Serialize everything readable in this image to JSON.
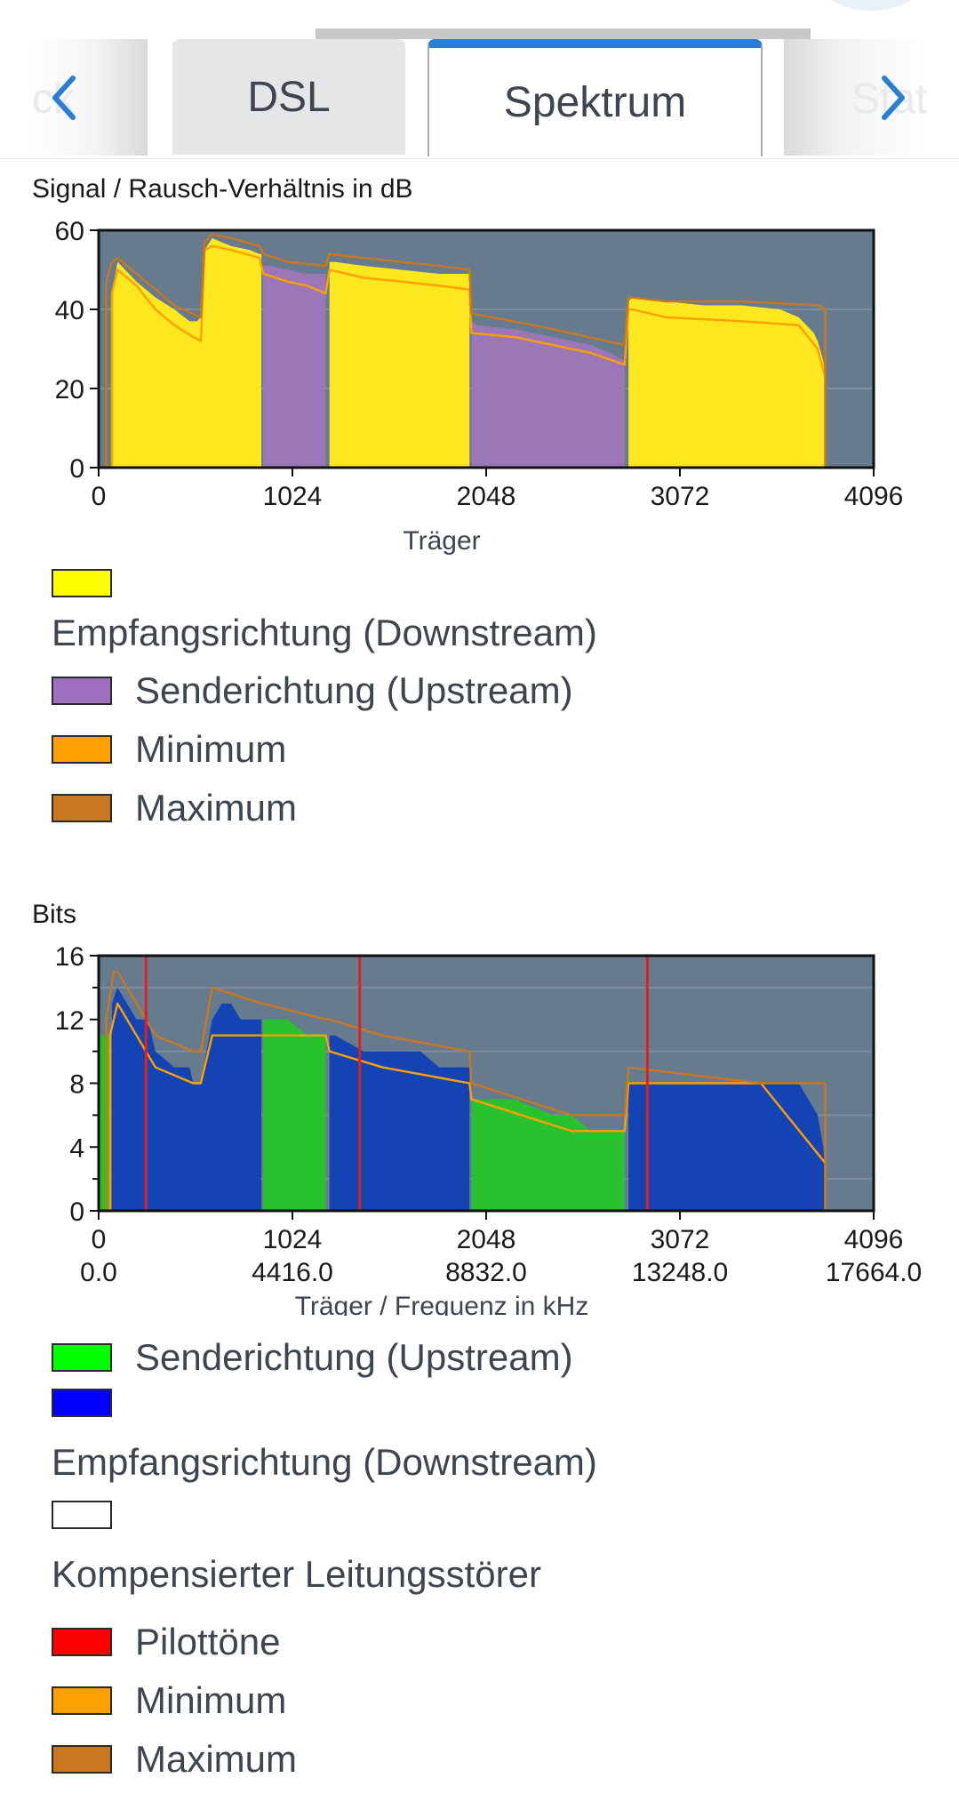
{
  "tabs": {
    "prev_partial": "ck",
    "items": [
      {
        "label": "DSL",
        "active": false
      },
      {
        "label": "Spektrum",
        "active": true
      }
    ],
    "next_partial": "Stat",
    "active_color": "#2b7fd3"
  },
  "snr_chart": {
    "title": "Signal / Rausch-Verhältnis in dB",
    "xlabel": "Träger",
    "xticks": [
      "0",
      "1024",
      "2048",
      "3072",
      "4096"
    ],
    "yticks": [
      "0",
      "20",
      "40",
      "60"
    ]
  },
  "snr_legend": [
    {
      "label": "Empfangsrichtung (Downstream)",
      "color": "#ffff00"
    },
    {
      "label": "Senderichtung (Upstream)",
      "color": "#a070c0"
    },
    {
      "label": "Minimum",
      "color": "#ffa000"
    },
    {
      "label": "Maximum",
      "color": "#c87820"
    }
  ],
  "bits_chart": {
    "title": "Bits",
    "xlabel": "Träger / Frequenz in kHz",
    "xticks": [
      "0",
      "1024",
      "2048",
      "3072",
      "4096"
    ],
    "xticks2": [
      "0.0",
      "4416.0",
      "8832.0",
      "13248.0",
      "17664.0"
    ],
    "yticks": [
      "0",
      "4",
      "8",
      "12",
      "16"
    ]
  },
  "bits_legend": [
    {
      "label": "Senderichtung (Upstream)",
      "color": "#00ff00"
    },
    {
      "label": "Empfangsrichtung (Downstream)",
      "color": "#0000ff"
    },
    {
      "label": "Kompensierter Leitungsstörer",
      "color": "#ffffff"
    },
    {
      "label": "Pilottöne",
      "color": "#ff0000"
    },
    {
      "label": "Minimum",
      "color": "#ffa000"
    },
    {
      "label": "Maximum",
      "color": "#c87820"
    }
  ],
  "chart_data": [
    {
      "type": "area",
      "title": "Signal / Rausch-Verhältnis in dB",
      "xlabel": "Träger",
      "ylabel": "",
      "xlim": [
        0,
        4096
      ],
      "ylim": [
        0,
        60
      ],
      "grid": true,
      "series": [
        {
          "name": "Empfangsrichtung (Downstream)",
          "color": "#fde71e",
          "x": [
            70,
            100,
            140,
            200,
            300,
            400,
            480,
            520,
            540,
            560,
            600,
            650,
            700,
            800,
            850,
            860
          ],
          "y": [
            44,
            52,
            50,
            47,
            43,
            40,
            37,
            37,
            38,
            55,
            58,
            57,
            56,
            55,
            54,
            54
          ]
        },
        {
          "name": "Senderichtung (Upstream)",
          "color": "#9b77b7",
          "x": [
            870,
            900,
            1000,
            1100,
            1200
          ],
          "y": [
            51,
            51,
            50,
            49,
            49
          ]
        },
        {
          "name": "Empfangsrichtung (Downstream)",
          "color": "#fde71e",
          "x": [
            1220,
            1250,
            1400,
            1600,
            1800,
            1950,
            1960
          ],
          "y": [
            52,
            52,
            51,
            50,
            49,
            49,
            49
          ]
        },
        {
          "name": "Senderichtung (Upstream)",
          "color": "#9b77b7",
          "x": [
            1970,
            2000,
            2200,
            2400,
            2600,
            2700,
            2780
          ],
          "y": [
            37,
            36,
            35,
            33,
            31,
            29,
            27
          ]
        },
        {
          "name": "Empfangsrichtung (Downstream)",
          "color": "#fde71e",
          "x": [
            2800,
            2820,
            3000,
            3200,
            3400,
            3600,
            3700,
            3780,
            3800,
            3830,
            3840
          ],
          "y": [
            42,
            43,
            42,
            41,
            41,
            40,
            38,
            34,
            32,
            27,
            23
          ]
        },
        {
          "name": "Minimum",
          "color": "#ffa000",
          "x": [
            70,
            100,
            200,
            300,
            400,
            500,
            540,
            560,
            600,
            700,
            850,
            870,
            1000,
            1100,
            1200,
            1220,
            1400,
            1600,
            1800,
            1960,
            1970,
            2200,
            2400,
            2600,
            2780,
            2800,
            2820,
            3000,
            3400,
            3700,
            3800,
            3840
          ],
          "y": [
            44,
            50,
            46,
            40,
            36,
            33,
            32,
            55,
            56,
            55,
            53,
            49,
            47,
            46,
            44,
            50,
            48,
            47,
            46,
            45,
            34,
            33,
            31,
            29,
            26,
            40,
            40,
            38,
            37,
            36,
            30,
            23
          ]
        },
        {
          "name": "Maximum",
          "color": "#c87820",
          "x": [
            40,
            70,
            100,
            200,
            300,
            400,
            540,
            560,
            600,
            700,
            850,
            870,
            1000,
            1200,
            1220,
            1400,
            1800,
            1960,
            1970,
            2400,
            2780,
            2800,
            2820,
            3000,
            3400,
            3800,
            3840
          ],
          "y": [
            47,
            52,
            53,
            49,
            45,
            41,
            38,
            57,
            59,
            58,
            56,
            54,
            52,
            51,
            54,
            53,
            51,
            50,
            39,
            35,
            31,
            43,
            43,
            42,
            42,
            41,
            40
          ]
        }
      ]
    },
    {
      "type": "area",
      "title": "Bits",
      "xlabel": "Träger / Frequenz in kHz",
      "ylabel": "",
      "xlim": [
        0,
        4096
      ],
      "ylim": [
        0,
        16
      ],
      "grid": true,
      "x_secondary_ticks": {
        "0": "0.0",
        "1024": "4416.0",
        "2048": "8832.0",
        "3072": "13248.0",
        "4096": "17664.0"
      },
      "series": [
        {
          "name": "Senderichtung (Upstream)",
          "color": "#27c22d",
          "x": [
            0,
            30,
            60
          ],
          "y": [
            11,
            11,
            11
          ]
        },
        {
          "name": "Empfangsrichtung (Downstream)",
          "color": "#1444b4",
          "x": [
            70,
            100,
            150,
            200,
            260,
            300,
            400,
            480,
            500,
            540,
            600,
            650,
            700,
            750,
            800,
            850,
            860
          ],
          "y": [
            13,
            14,
            13,
            12,
            12,
            10,
            9,
            9,
            8,
            8,
            12,
            13,
            13,
            12,
            12,
            12,
            12
          ]
        },
        {
          "name": "Senderichtung (Upstream)",
          "color": "#27c22d",
          "x": [
            870,
            900,
            1000,
            1100,
            1200
          ],
          "y": [
            12,
            12,
            12,
            11,
            11
          ]
        },
        {
          "name": "Empfangsrichtung (Downstream)",
          "color": "#1444b4",
          "x": [
            1220,
            1250,
            1400,
            1500,
            1600,
            1700,
            1800,
            1900,
            1960
          ],
          "y": [
            11,
            11,
            10,
            10,
            10,
            10,
            9,
            9,
            9
          ]
        },
        {
          "name": "Senderichtung (Upstream)",
          "color": "#27c22d",
          "x": [
            1970,
            2000,
            2200,
            2400,
            2500,
            2600,
            2700,
            2780
          ],
          "y": [
            7,
            7,
            7,
            6,
            6,
            5,
            5,
            5
          ]
        },
        {
          "name": "Empfangsrichtung (Downstream)",
          "color": "#1444b4",
          "x": [
            2800,
            2900,
            3200,
            3500,
            3700,
            3750,
            3800,
            3830,
            3840
          ],
          "y": [
            8,
            8,
            8,
            8,
            8,
            7,
            6,
            4,
            2
          ]
        },
        {
          "name": "Pilottöne",
          "color": "#e02020",
          "x": [
            250,
            1380,
            2900
          ],
          "y": [
            16,
            16,
            16
          ]
        },
        {
          "name": "Minimum",
          "color": "#ffa000",
          "x": [
            60,
            100,
            200,
            300,
            500,
            540,
            600,
            860,
            870,
            1200,
            1220,
            1500,
            1960,
            1970,
            2500,
            2780,
            2800,
            3500,
            3840
          ],
          "y": [
            11,
            13,
            11,
            9,
            8,
            8,
            11,
            11,
            11,
            11,
            10,
            9,
            8,
            7,
            5,
            5,
            8,
            8,
            3
          ]
        },
        {
          "name": "Maximum",
          "color": "#c87820",
          "x": [
            40,
            80,
            100,
            200,
            300,
            500,
            540,
            600,
            860,
            870,
            1200,
            1220,
            1500,
            1960,
            1970,
            2500,
            2780,
            2800,
            3500,
            3840
          ],
          "y": [
            12,
            15,
            15,
            13,
            11,
            10,
            10,
            14,
            13,
            13,
            12,
            12,
            11,
            10,
            8,
            6,
            6,
            9,
            8,
            8
          ]
        }
      ]
    }
  ]
}
